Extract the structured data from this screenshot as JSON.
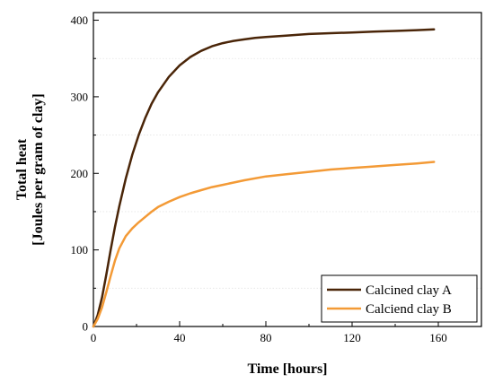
{
  "chart_data": {
    "type": "line",
    "title": "",
    "xlabel": "Time [hours]",
    "ylabel_line1": "Total heat",
    "ylabel_line2": "[Joules per gram of clay]",
    "xlim": [
      0,
      180
    ],
    "ylim": [
      0,
      410
    ],
    "xticks": [
      0,
      40,
      80,
      120,
      160
    ],
    "yticks": [
      0,
      100,
      200,
      300,
      400
    ],
    "grid": "faint horizontal dotted",
    "legend_position": "bottom-right",
    "series": [
      {
        "name": "Calcined clay A",
        "color": "#4a2508",
        "x": [
          0,
          2,
          4,
          6,
          8,
          10,
          12,
          15,
          18,
          21,
          24,
          27,
          30,
          35,
          40,
          45,
          50,
          55,
          60,
          65,
          70,
          75,
          80,
          90,
          100,
          110,
          120,
          130,
          140,
          150,
          158
        ],
        "y": [
          0,
          15,
          38,
          68,
          100,
          130,
          157,
          193,
          224,
          250,
          272,
          291,
          306,
          326,
          341,
          352,
          360,
          366,
          370,
          373,
          375,
          377,
          378,
          380,
          382,
          383,
          384,
          385,
          386,
          387,
          388
        ]
      },
      {
        "name": "Calciend clay B",
        "color": "#f39a36",
        "x": [
          0,
          2,
          4,
          6,
          8,
          10,
          12,
          15,
          18,
          21,
          24,
          27,
          30,
          35,
          40,
          45,
          50,
          55,
          60,
          70,
          80,
          90,
          100,
          110,
          120,
          130,
          140,
          150,
          158
        ],
        "y": [
          0,
          10,
          25,
          45,
          66,
          86,
          102,
          118,
          128,
          136,
          143,
          150,
          156,
          163,
          169,
          174,
          178,
          182,
          185,
          191,
          196,
          199,
          202,
          205,
          207,
          209,
          211,
          213,
          215
        ]
      }
    ]
  }
}
